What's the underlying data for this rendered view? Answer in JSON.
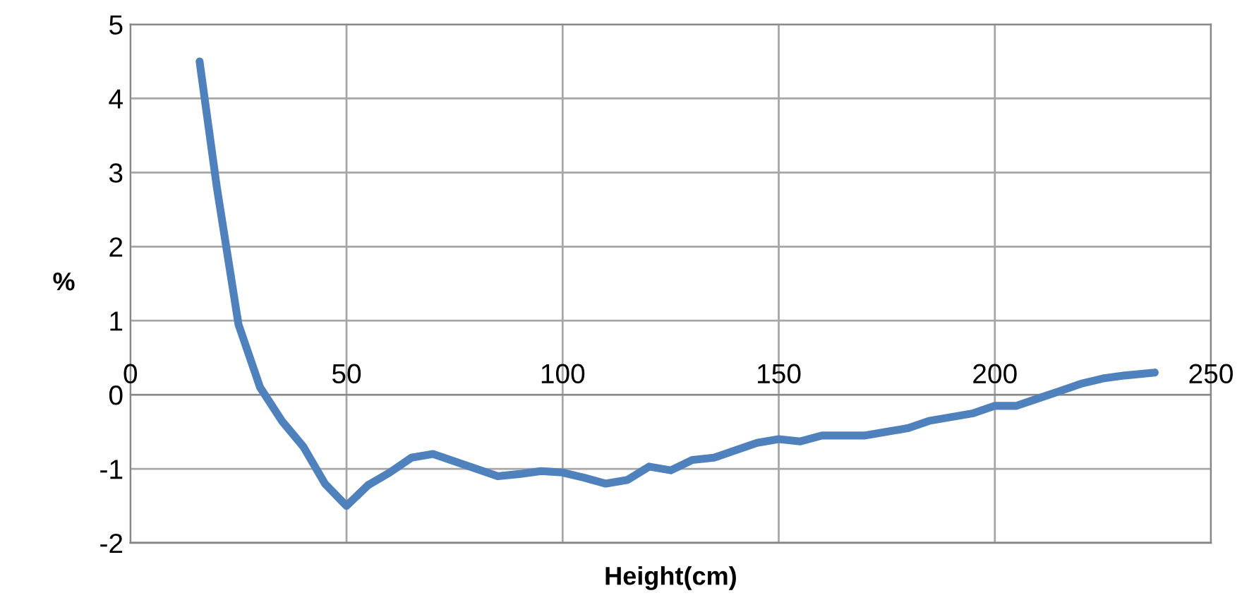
{
  "chart_data": {
    "type": "line",
    "xlabel": "Height(cm)",
    "ylabel": "%",
    "xlim": [
      0,
      250
    ],
    "xticks": [
      0,
      50,
      100,
      150,
      200,
      250
    ],
    "ylim": [
      -2,
      5
    ],
    "yticks": [
      -2,
      -1,
      0,
      1,
      2,
      3,
      4,
      5
    ],
    "grid": true,
    "legend": false,
    "marker": "none",
    "line_style": "solid",
    "series": [
      {
        "color": "#4f81bd",
        "x": [
          16,
          20,
          25,
          30,
          35,
          40,
          45,
          50,
          55,
          60,
          65,
          70,
          75,
          80,
          85,
          90,
          95,
          100,
          105,
          110,
          115,
          120,
          125,
          130,
          135,
          140,
          145,
          150,
          155,
          160,
          170,
          180,
          185,
          190,
          195,
          200,
          205,
          210,
          215,
          220,
          225,
          230,
          237
        ],
        "values": [
          4.5,
          2.8,
          0.95,
          0.1,
          -0.35,
          -0.7,
          -1.2,
          -1.5,
          -1.22,
          -1.05,
          -0.85,
          -0.8,
          -0.9,
          -1.0,
          -1.1,
          -1.07,
          -1.03,
          -1.05,
          -1.12,
          -1.2,
          -1.15,
          -0.97,
          -1.02,
          -0.88,
          -0.85,
          -0.75,
          -0.65,
          -0.6,
          -0.63,
          -0.55,
          -0.55,
          -0.45,
          -0.35,
          -0.3,
          -0.25,
          -0.15,
          -0.15,
          -0.05,
          0.05,
          0.15,
          0.22,
          0.26,
          0.3
        ]
      }
    ]
  }
}
